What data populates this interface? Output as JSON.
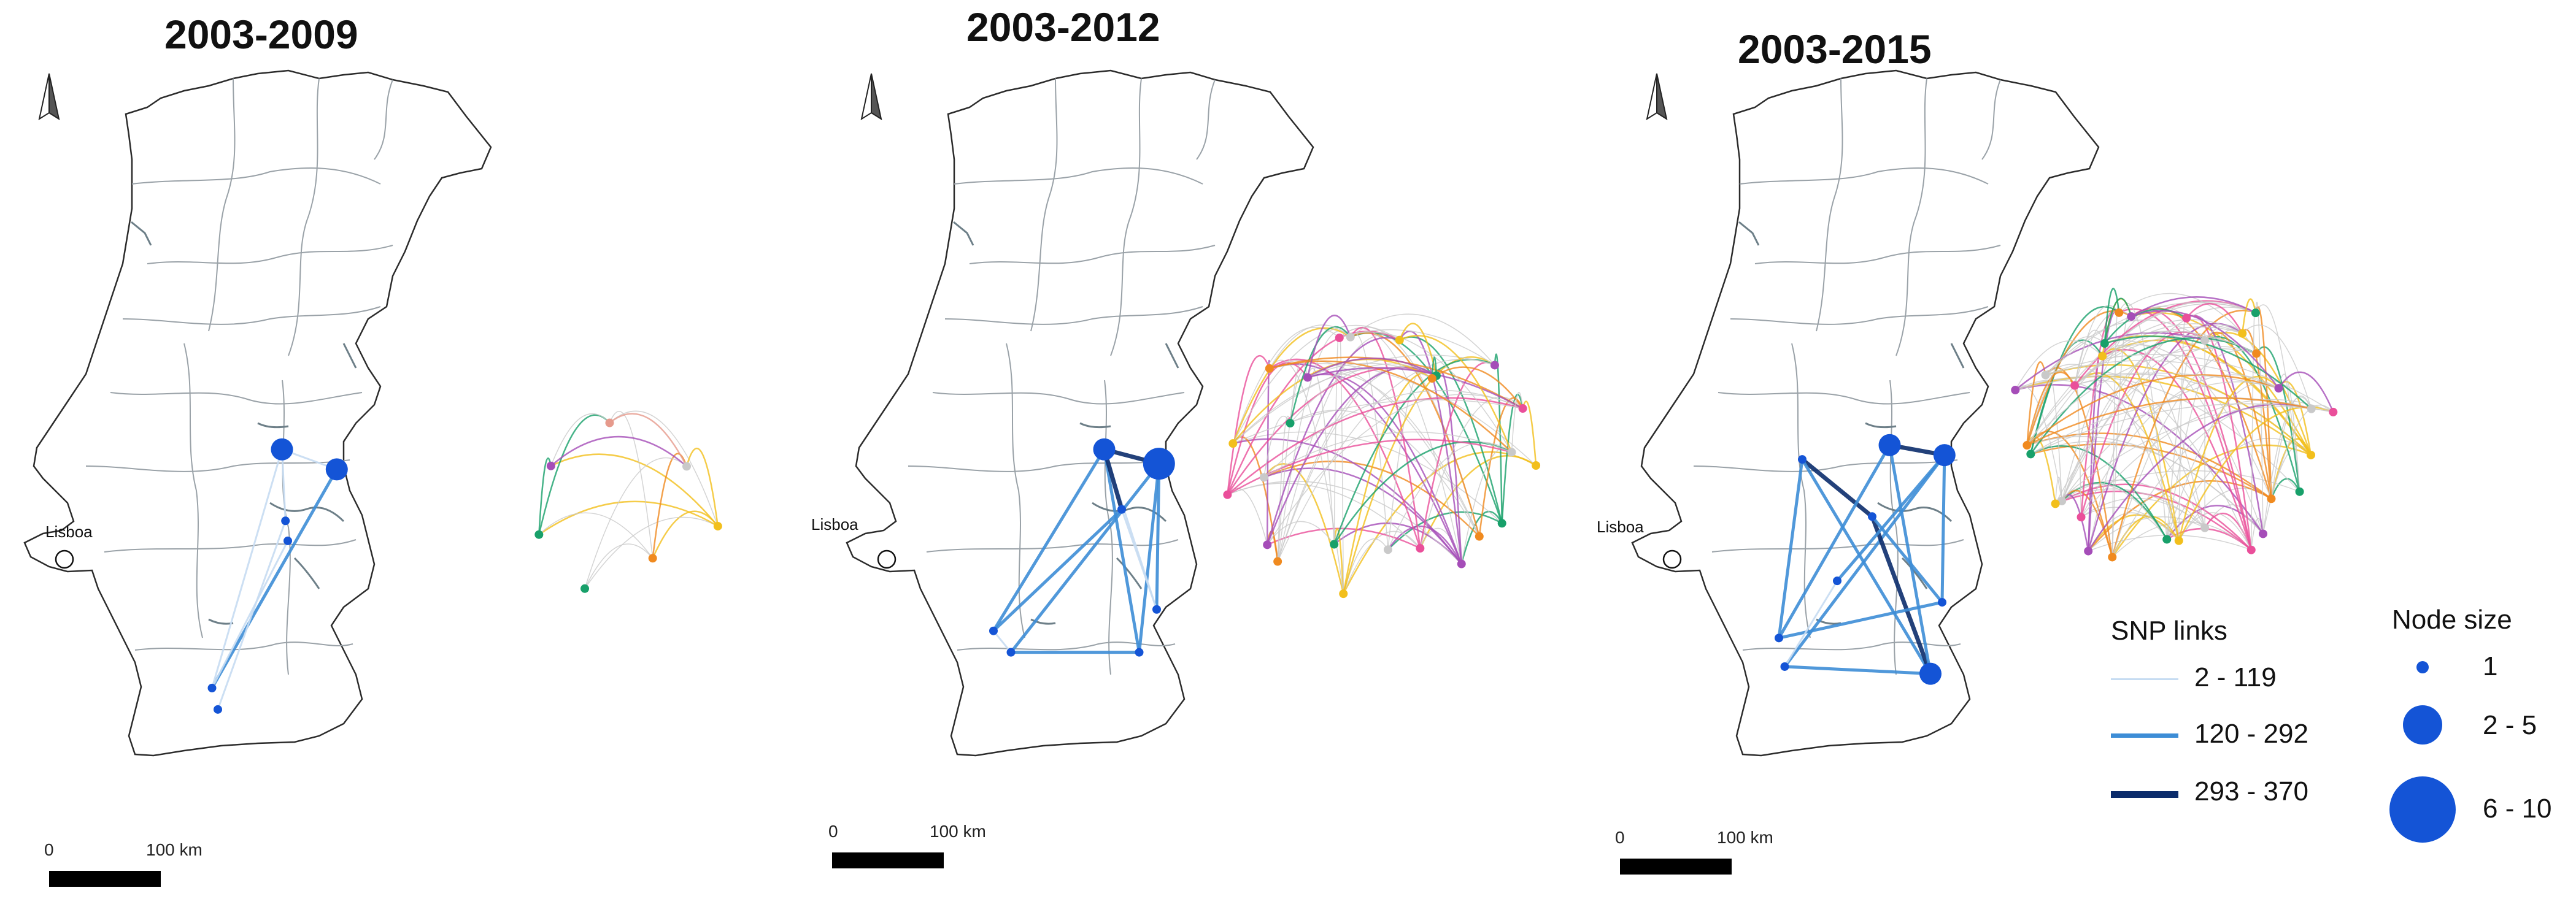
{
  "panels": [
    {
      "title": "2003-2009",
      "city_label": "Lisboa",
      "scale": {
        "zero": "0",
        "km": "100 km"
      },
      "nodes": [
        {
          "lon": -7.45,
          "lat": 39.52,
          "size_class": "2 - 5"
        },
        {
          "lon": -6.98,
          "lat": 39.38,
          "size_class": "2 - 5"
        },
        {
          "lon": -7.42,
          "lat": 39.02,
          "size_class": "1"
        },
        {
          "lon": -7.4,
          "lat": 38.88,
          "size_class": "1"
        },
        {
          "lon": -8.05,
          "lat": 37.85,
          "size_class": "1"
        },
        {
          "lon": -8.0,
          "lat": 37.7,
          "size_class": "1"
        }
      ],
      "links": [
        {
          "from": 0,
          "to": 1,
          "weight_class": "2 - 119"
        },
        {
          "from": 1,
          "to": 4,
          "weight_class": "120 - 292"
        },
        {
          "from": 0,
          "to": 4,
          "weight_class": "2 - 119"
        },
        {
          "from": 2,
          "to": 5,
          "weight_class": "2 - 119"
        },
        {
          "from": 3,
          "to": 4,
          "weight_class": "2 - 119"
        },
        {
          "from": 0,
          "to": 2,
          "weight_class": "2 - 119"
        }
      ]
    },
    {
      "title": "2003-2012",
      "city_label": "Lisboa",
      "scale": {
        "zero": "0",
        "km": "100 km"
      },
      "nodes": [
        {
          "lon": -7.45,
          "lat": 39.52,
          "size_class": "2 - 5"
        },
        {
          "lon": -6.98,
          "lat": 39.42,
          "size_class": "6 - 10"
        },
        {
          "lon": -7.3,
          "lat": 39.1,
          "size_class": "1"
        },
        {
          "lon": -8.4,
          "lat": 38.25,
          "size_class": "1"
        },
        {
          "lon": -8.25,
          "lat": 38.1,
          "size_class": "1"
        },
        {
          "lon": -7.15,
          "lat": 38.1,
          "size_class": "1"
        },
        {
          "lon": -7.0,
          "lat": 38.4,
          "size_class": "1"
        }
      ],
      "links": [
        {
          "from": 0,
          "to": 1,
          "weight_class": "293 - 370"
        },
        {
          "from": 0,
          "to": 3,
          "weight_class": "120 - 292"
        },
        {
          "from": 1,
          "to": 4,
          "weight_class": "120 - 292"
        },
        {
          "from": 1,
          "to": 5,
          "weight_class": "120 - 292"
        },
        {
          "from": 0,
          "to": 5,
          "weight_class": "120 - 292"
        },
        {
          "from": 3,
          "to": 4,
          "weight_class": "2 - 119"
        },
        {
          "from": 4,
          "to": 5,
          "weight_class": "120 - 292"
        },
        {
          "from": 2,
          "to": 3,
          "weight_class": "120 - 292"
        },
        {
          "from": 2,
          "to": 6,
          "weight_class": "2 - 119"
        },
        {
          "from": 1,
          "to": 6,
          "weight_class": "120 - 292"
        },
        {
          "from": 0,
          "to": 6,
          "weight_class": "2 - 119"
        },
        {
          "from": 0,
          "to": 2,
          "weight_class": "293 - 370"
        }
      ]
    },
    {
      "title": "2003-2015",
      "city_label": "Lisboa",
      "scale": {
        "zero": "0",
        "km": "100 km"
      },
      "nodes": [
        {
          "lon": -7.45,
          "lat": 39.55,
          "size_class": "2 - 5"
        },
        {
          "lon": -6.98,
          "lat": 39.48,
          "size_class": "2 - 5"
        },
        {
          "lon": -8.2,
          "lat": 39.45,
          "size_class": "1"
        },
        {
          "lon": -7.6,
          "lat": 39.05,
          "size_class": "1"
        },
        {
          "lon": -8.4,
          "lat": 38.2,
          "size_class": "1"
        },
        {
          "lon": -8.35,
          "lat": 38.0,
          "size_class": "1"
        },
        {
          "lon": -7.1,
          "lat": 37.95,
          "size_class": "2 - 5"
        },
        {
          "lon": -7.0,
          "lat": 38.45,
          "size_class": "1"
        },
        {
          "lon": -7.9,
          "lat": 38.6,
          "size_class": "1"
        }
      ],
      "links": [
        {
          "from": 0,
          "to": 1,
          "weight_class": "293 - 370"
        },
        {
          "from": 2,
          "to": 3,
          "weight_class": "293 - 370"
        },
        {
          "from": 0,
          "to": 4,
          "weight_class": "120 - 292"
        },
        {
          "from": 1,
          "to": 5,
          "weight_class": "120 - 292"
        },
        {
          "from": 2,
          "to": 6,
          "weight_class": "120 - 292"
        },
        {
          "from": 3,
          "to": 6,
          "weight_class": "293 - 370"
        },
        {
          "from": 0,
          "to": 6,
          "weight_class": "120 - 292"
        },
        {
          "from": 4,
          "to": 7,
          "weight_class": "120 - 292"
        },
        {
          "from": 5,
          "to": 6,
          "weight_class": "120 - 292"
        },
        {
          "from": 2,
          "to": 4,
          "weight_class": "120 - 292"
        },
        {
          "from": 1,
          "to": 7,
          "weight_class": "120 - 292"
        },
        {
          "from": 8,
          "to": 1,
          "weight_class": "120 - 292"
        },
        {
          "from": 8,
          "to": 5,
          "weight_class": "2 - 119"
        },
        {
          "from": 3,
          "to": 7,
          "weight_class": "120 - 292"
        }
      ]
    }
  ],
  "legend": {
    "links_title": "SNP links",
    "links": [
      {
        "label": "2 - 119",
        "color": "#c6dcf2"
      },
      {
        "label": "120 - 292",
        "color": "#3d8dd6"
      },
      {
        "label": "293 - 370",
        "color": "#0b2c6b"
      }
    ],
    "nodes_title": "Node size",
    "nodes": [
      {
        "label": "1"
      },
      {
        "label": "2 - 5"
      },
      {
        "label": "6 - 10"
      }
    ]
  },
  "colors": {
    "node": "#1454d6",
    "map_border": "#2b2b2b",
    "district_border": "#9aa2a8",
    "water": "#6d7f88",
    "link_weak": "#c6dcf2",
    "link_mid": "#3d8dd6",
    "link_strong": "#0b2c6b",
    "cluster_yellow": "#f2bf1c",
    "cluster_orange": "#f08a1f",
    "cluster_green": "#18a06a",
    "cluster_purple": "#a54db8",
    "cluster_pink": "#ea4f9a",
    "cluster_salmon": "#e69a8c",
    "cluster_gray": "#c9c9c9"
  }
}
